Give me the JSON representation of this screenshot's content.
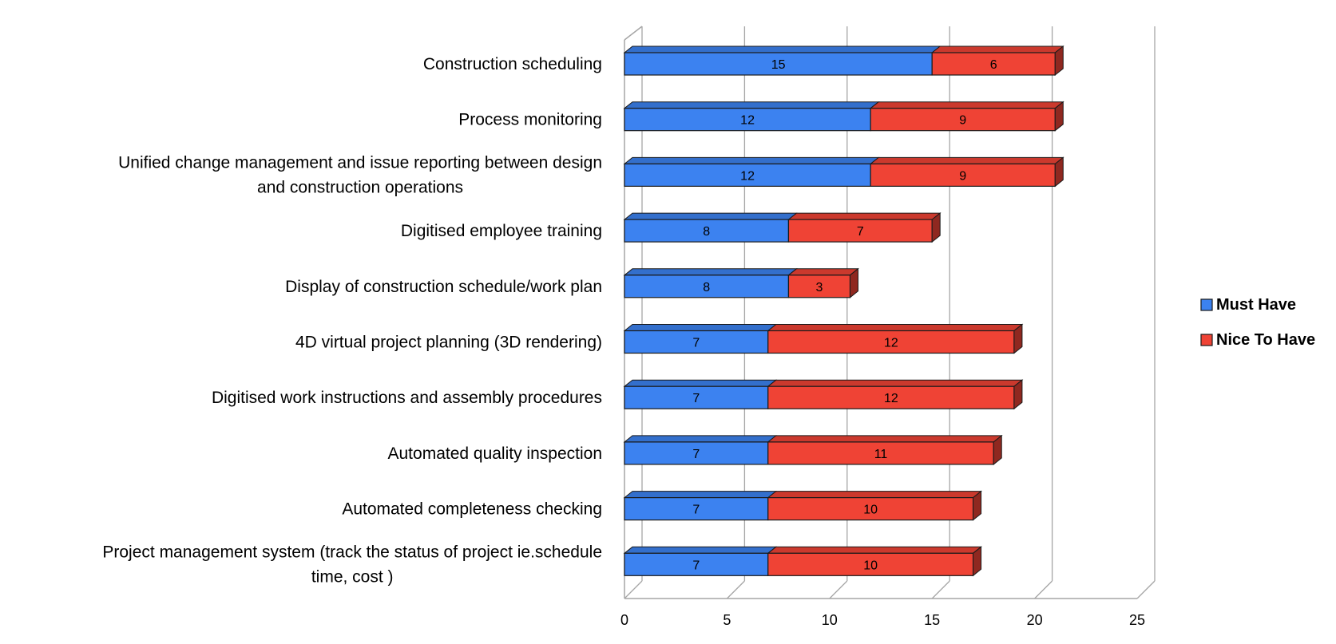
{
  "chart_data": {
    "type": "bar",
    "orientation": "horizontal",
    "stacked": true,
    "three_d": true,
    "categories": [
      "Construction scheduling",
      "Process monitoring",
      "Unified change management and issue reporting between design and construction operations",
      "Digitised employee training",
      "Display of construction schedule/work plan",
      "4D virtual project planning (3D rendering)",
      "Digitised work instructions and assembly procedures",
      "Automated quality inspection",
      "Automated completeness checking",
      "Project management system (track the status of project ie.schedule time, cost )"
    ],
    "category_lines": [
      [
        "Construction scheduling"
      ],
      [
        "Process monitoring"
      ],
      [
        "Unified change management and issue reporting between design",
        "and construction operations"
      ],
      [
        "Digitised employee training"
      ],
      [
        "Display of construction schedule/work plan"
      ],
      [
        "4D virtual project planning (3D rendering)"
      ],
      [
        "Digitised work instructions and assembly procedures"
      ],
      [
        "Automated quality inspection"
      ],
      [
        "Automated completeness checking"
      ],
      [
        "Project management system (track the status of project ie.schedule",
        "time, cost )"
      ]
    ],
    "series": [
      {
        "name": "Must Have",
        "color": "#3c82f0",
        "values": [
          15,
          12,
          12,
          8,
          8,
          7,
          7,
          7,
          7,
          7
        ]
      },
      {
        "name": "Nice To Have",
        "color": "#ef4335",
        "values": [
          6,
          9,
          9,
          7,
          3,
          12,
          12,
          11,
          10,
          10
        ]
      }
    ],
    "xlim": [
      0,
      25
    ],
    "xticks": [
      "0",
      "5",
      "10",
      "15",
      "20",
      "25"
    ],
    "grid": true,
    "data_labels": true,
    "legend_position": "right"
  }
}
